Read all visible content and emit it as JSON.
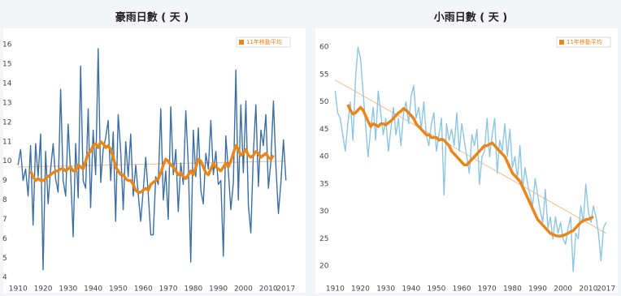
{
  "chart_data": [
    {
      "type": "line",
      "title": "豪雨日數 ( 天 )",
      "x": [
        1910,
        1911,
        1912,
        1913,
        1914,
        1915,
        1916,
        1917,
        1918,
        1919,
        1920,
        1921,
        1922,
        1923,
        1924,
        1925,
        1926,
        1927,
        1928,
        1929,
        1930,
        1931,
        1932,
        1933,
        1934,
        1935,
        1936,
        1937,
        1938,
        1939,
        1940,
        1941,
        1942,
        1943,
        1944,
        1945,
        1946,
        1947,
        1948,
        1949,
        1950,
        1951,
        1952,
        1953,
        1954,
        1955,
        1956,
        1957,
        1958,
        1959,
        1960,
        1961,
        1962,
        1963,
        1964,
        1965,
        1966,
        1967,
        1968,
        1969,
        1970,
        1971,
        1972,
        1973,
        1974,
        1975,
        1976,
        1977,
        1978,
        1979,
        1980,
        1981,
        1982,
        1983,
        1984,
        1985,
        1986,
        1987,
        1988,
        1989,
        1990,
        1991,
        1992,
        1993,
        1994,
        1995,
        1996,
        1997,
        1998,
        1999,
        2000,
        2001,
        2002,
        2003,
        2004,
        2005,
        2006,
        2007,
        2008,
        2009,
        2010,
        2011,
        2012,
        2013,
        2014,
        2015,
        2016,
        2017
      ],
      "xlim": [
        1907,
        2020
      ],
      "xticks": [
        1910,
        1920,
        1930,
        1940,
        1950,
        1960,
        1970,
        1980,
        1990,
        2000,
        2010,
        2017
      ],
      "ylim": [
        3.8,
        16.3
      ],
      "yticks": [
        4,
        5,
        6,
        7,
        8,
        9,
        10,
        11,
        12,
        13,
        14,
        15,
        16
      ],
      "series": [
        {
          "color": "#3d6fa3",
          "values": [
            9.8,
            10.6,
            9.0,
            9.6,
            8.2,
            10.8,
            6.7,
            10.9,
            9.2,
            11.4,
            4.4,
            10.5,
            7.8,
            9.6,
            10.9,
            9.1,
            8.4,
            13.7,
            9.0,
            8.2,
            11.9,
            9.4,
            6.1,
            10.9,
            8.1,
            14.9,
            9.0,
            8.6,
            12.7,
            7.6,
            11.6,
            9.3,
            15.8,
            8.9,
            10.6,
            11.2,
            12.1,
            9.0,
            11.5,
            6.9,
            12.4,
            10.5,
            7.5,
            11.0,
            9.2,
            11.4,
            8.2,
            9.8,
            8.3,
            6.9,
            8.5,
            10.2,
            8.3,
            6.2,
            6.2,
            9.2,
            8.8,
            12.7,
            8.0,
            9.5,
            7.0,
            12.8,
            9.3,
            10.6,
            7.4,
            9.9,
            8.8,
            12.6,
            9.8,
            4.8,
            11.6,
            9.2,
            11.7,
            8.5,
            7.8,
            10.4,
            9.6,
            12.1,
            9.3,
            10.5,
            8.8,
            9.0,
            5.1,
            11.3,
            9.5,
            7.5,
            8.9,
            14.7,
            8.0,
            12.9,
            9.4,
            13.1,
            7.7,
            6.3,
            10.4,
            12.9,
            8.7,
            11.6,
            10.8,
            12.4,
            8.6,
            10.0,
            13.1,
            9.8,
            7.3,
            8.9,
            11.1,
            9.0
          ]
        },
        {
          "name": "11年移動平均",
          "color": "#e8861c",
          "values": [
            null,
            null,
            null,
            null,
            null,
            9.5,
            9.2,
            9.0,
            9.1,
            9.0,
            9.0,
            9.1,
            9.2,
            9.3,
            9.4,
            9.5,
            9.5,
            9.6,
            9.6,
            9.5,
            9.6,
            9.7,
            9.5,
            9.5,
            9.8,
            9.7,
            9.6,
            10.0,
            10.4,
            10.5,
            10.8,
            10.9,
            10.7,
            11.0,
            10.9,
            10.7,
            10.8,
            10.6,
            10.2,
            9.7,
            9.5,
            9.3,
            9.3,
            9.1,
            9.0,
            9.0,
            8.8,
            8.5,
            8.4,
            8.4,
            8.5,
            8.6,
            8.5,
            8.8,
            8.9,
            9.0,
            9.1,
            9.4,
            9.8,
            10.1,
            10.0,
            9.8,
            9.7,
            9.5,
            9.3,
            9.4,
            9.2,
            9.1,
            9.3,
            9.5,
            9.3,
            9.7,
            10.1,
            10.0,
            9.7,
            9.4,
            9.3,
            9.6,
            9.9,
            9.7,
            9.6,
            9.5,
            9.7,
            9.9,
            9.7,
            10.0,
            10.4,
            10.8,
            10.6,
            10.3,
            10.4,
            10.6,
            10.3,
            10.2,
            10.3,
            10.5,
            10.4,
            10.2,
            10.3,
            10.4,
            10.2,
            10.1,
            10.3,
            null,
            null,
            null,
            null,
            null
          ]
        },
        {
          "color": "#f3c89c",
          "x": [
            1910,
            2017
          ],
          "values": [
            9.7,
            10.0
          ]
        }
      ]
    },
    {
      "type": "line",
      "title": "小雨日數 ( 天 )",
      "x": [
        1910,
        1911,
        1912,
        1913,
        1914,
        1915,
        1916,
        1917,
        1918,
        1919,
        1920,
        1921,
        1922,
        1923,
        1924,
        1925,
        1926,
        1927,
        1928,
        1929,
        1930,
        1931,
        1932,
        1933,
        1934,
        1935,
        1936,
        1937,
        1938,
        1939,
        1940,
        1941,
        1942,
        1943,
        1944,
        1945,
        1946,
        1947,
        1948,
        1949,
        1950,
        1951,
        1952,
        1953,
        1954,
        1955,
        1956,
        1957,
        1958,
        1959,
        1960,
        1961,
        1962,
        1963,
        1964,
        1965,
        1966,
        1967,
        1968,
        1969,
        1970,
        1971,
        1972,
        1973,
        1974,
        1975,
        1976,
        1977,
        1978,
        1979,
        1980,
        1981,
        1982,
        1983,
        1984,
        1985,
        1986,
        1987,
        1988,
        1989,
        1990,
        1991,
        1992,
        1993,
        1994,
        1995,
        1996,
        1997,
        1998,
        1999,
        2000,
        2001,
        2002,
        2003,
        2004,
        2005,
        2006,
        2007,
        2008,
        2009,
        2010,
        2011,
        2012,
        2013,
        2014,
        2015,
        2016,
        2017
      ],
      "xlim": [
        1907,
        2020
      ],
      "xticks": [
        1910,
        1920,
        1930,
        1940,
        1950,
        1960,
        1970,
        1980,
        1990,
        2000,
        2010,
        2017
      ],
      "ylim": [
        19,
        61.5
      ],
      "yticks": [
        20,
        25,
        30,
        35,
        40,
        45,
        50,
        55,
        60
      ],
      "series": [
        {
          "color": "#8ec6e2",
          "values": [
            52,
            48,
            47,
            44,
            41,
            46,
            50,
            43,
            54,
            60,
            58,
            52,
            46,
            40,
            45,
            49,
            43,
            52,
            48,
            44,
            47,
            41,
            45,
            49,
            44,
            47,
            42,
            48,
            50,
            46,
            51,
            53,
            47,
            49,
            45,
            50,
            44,
            42,
            46,
            48,
            41,
            44,
            47,
            33,
            46,
            43,
            45,
            42,
            48,
            41,
            46,
            43,
            40,
            37,
            44,
            42,
            45,
            35,
            40,
            41,
            47,
            40,
            44,
            47,
            37,
            43,
            41,
            46,
            40,
            45,
            38,
            40,
            36,
            42,
            34,
            38,
            35,
            33,
            31,
            36,
            33,
            30,
            28,
            34,
            27,
            29,
            25,
            29,
            26,
            28,
            25,
            24,
            27,
            29,
            19,
            26,
            25,
            31,
            28,
            35,
            30,
            28,
            31,
            29,
            26,
            21,
            27,
            28
          ]
        },
        {
          "name": "11年移動平均",
          "color": "#e8861c",
          "values": [
            null,
            null,
            null,
            null,
            null,
            49.5,
            48.5,
            47.8,
            48.0,
            48.5,
            49.0,
            48.5,
            47.5,
            46.5,
            45.5,
            46.0,
            45.8,
            45.5,
            46.0,
            46.0,
            45.8,
            46.2,
            46.5,
            47.0,
            47.5,
            48.0,
            48.3,
            48.8,
            48.5,
            48.0,
            47.5,
            47.0,
            46.0,
            45.5,
            45.0,
            44.5,
            44.0,
            44.0,
            43.5,
            43.5,
            43.5,
            43.0,
            43.2,
            43.0,
            42.5,
            42.0,
            41.0,
            40.5,
            40.0,
            39.5,
            39.0,
            38.5,
            38.5,
            39.0,
            39.5,
            40.0,
            40.5,
            41.0,
            41.5,
            42.0,
            42.0,
            42.3,
            42.5,
            42.0,
            41.5,
            41.0,
            40.5,
            40.0,
            39.0,
            38.0,
            37.0,
            36.5,
            36.0,
            35.5,
            34.5,
            33.5,
            32.5,
            31.5,
            30.5,
            29.5,
            28.5,
            28.0,
            27.5,
            27.0,
            26.5,
            26.0,
            25.8,
            25.6,
            25.5,
            25.5,
            25.6,
            25.8,
            26.0,
            26.3,
            26.5,
            27.0,
            27.5,
            28.0,
            28.3,
            28.5,
            28.6,
            28.8,
            29.0,
            null,
            null,
            null,
            null,
            null
          ]
        },
        {
          "color": "#f3c89c",
          "x": [
            1910,
            2017
          ],
          "values": [
            54,
            26
          ]
        }
      ]
    }
  ]
}
